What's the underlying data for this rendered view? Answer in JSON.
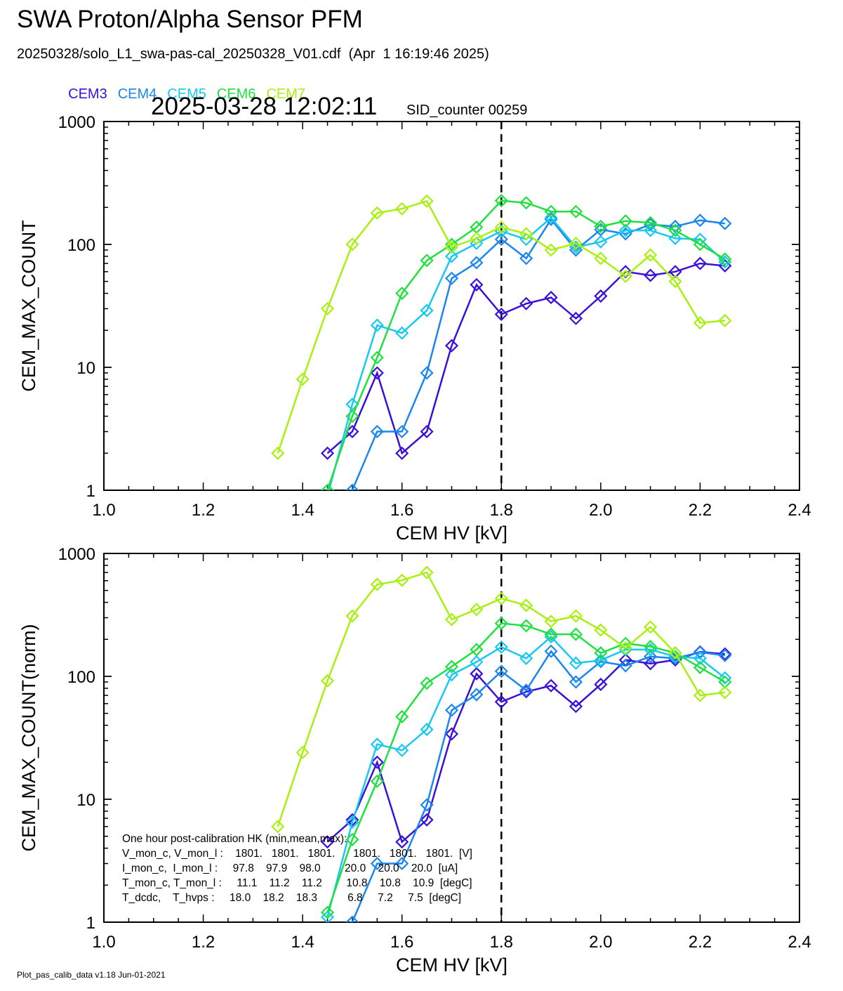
{
  "header": {
    "title": "SWA Proton/Alpha Sensor PFM",
    "subtitle": "20250328/solo_L1_swa-pas-cal_20250328_V01.cdf  (Apr  1 16:19:46 2025)",
    "timestamp": "2025-03-28 12:02:11",
    "sid_counter": "SID_counter 00259"
  },
  "footer": "Plot_pas_calib_data v1.18 Jun-01-2021",
  "legend": [
    {
      "name": "CEM3",
      "color": "#3a10d8"
    },
    {
      "name": "CEM4",
      "color": "#1a86ee"
    },
    {
      "name": "CEM5",
      "color": "#18c8f0"
    },
    {
      "name": "CEM6",
      "color": "#20e040"
    },
    {
      "name": "CEM7",
      "color": "#a8f010"
    }
  ],
  "hk_box": {
    "lines": [
      "One hour post-calibration HK (min,mean,max):",
      "V_mon_c, V_mon_l :    1801.   1801.   1801.      1801.   1801.   1801.  [V]",
      "I_mon_c,  I_mon_l :     97.8    97.9    98.0        20.0    20.0    20.0  [uA]",
      "T_mon_c, T_mon_l :     11.1    11.2    11.2        10.8    10.8    10.9  [degC]",
      "T_dcdc,    T_hvps :     18.0    18.2    18.3          6.8     7.2     7.5  [degC]"
    ]
  },
  "chart_data": [
    {
      "type": "line",
      "xlabel": "CEM HV [kV]",
      "ylabel": "CEM_MAX_COUNT",
      "xlim": [
        1.0,
        2.4
      ],
      "ylim": [
        1,
        1000
      ],
      "yscale": "log",
      "xticks": [
        "1.0",
        "1.2",
        "1.4",
        "1.6",
        "1.8",
        "2.0",
        "2.2",
        "2.4"
      ],
      "yticks": [
        "1",
        "10",
        "100",
        "1000"
      ],
      "vline_x": 1.8,
      "series": [
        {
          "name": "CEM3",
          "color": "#3a10d8",
          "x": [
            1.45,
            1.5,
            1.55,
            1.6,
            1.65,
            1.7,
            1.75,
            1.8,
            1.85,
            1.9,
            1.95,
            2.0,
            2.05,
            2.1,
            2.15,
            2.2,
            2.25
          ],
          "y": [
            2,
            3,
            9,
            2,
            3,
            15,
            47,
            27,
            33,
            37,
            25,
            38,
            60,
            56,
            60,
            70,
            67
          ]
        },
        {
          "name": "CEM4",
          "color": "#1a86ee",
          "x": [
            1.45,
            1.5,
            1.55,
            1.6,
            1.65,
            1.7,
            1.75,
            1.8,
            1.85,
            1.9,
            1.95,
            2.0,
            2.05,
            2.1,
            2.15,
            2.2,
            2.25
          ],
          "y": [
            0.9,
            1,
            3,
            3,
            9,
            53,
            71,
            110,
            77,
            160,
            90,
            132,
            122,
            145,
            140,
            157,
            148
          ]
        },
        {
          "name": "CEM5",
          "color": "#18c8f0",
          "x": [
            1.45,
            1.5,
            1.55,
            1.6,
            1.65,
            1.7,
            1.75,
            1.8,
            1.85,
            1.9,
            1.95,
            2.0,
            2.05,
            2.1,
            2.15,
            2.2,
            2.25
          ],
          "y": [
            0.9,
            5,
            22,
            19,
            29,
            80,
            102,
            128,
            110,
            165,
            95,
            105,
            130,
            130,
            112,
            110,
            72
          ]
        },
        {
          "name": "CEM6",
          "color": "#20e040",
          "x": [
            1.45,
            1.5,
            1.55,
            1.6,
            1.65,
            1.7,
            1.75,
            1.8,
            1.85,
            1.9,
            1.95,
            2.0,
            2.05,
            2.1,
            2.15,
            2.2,
            2.25
          ],
          "y": [
            1,
            4,
            12,
            40,
            74,
            100,
            138,
            227,
            218,
            185,
            185,
            140,
            155,
            150,
            130,
            100,
            76
          ]
        },
        {
          "name": "CEM7",
          "color": "#a8f010",
          "x": [
            1.35,
            1.4,
            1.45,
            1.5,
            1.55,
            1.6,
            1.65,
            1.7,
            1.75,
            1.8,
            1.85,
            1.9,
            1.95,
            2.0,
            2.05,
            2.1,
            2.15,
            2.2,
            2.25
          ],
          "y": [
            2,
            8,
            30,
            100,
            180,
            195,
            225,
            95,
            112,
            138,
            122,
            90,
            102,
            77,
            55,
            82,
            50,
            23,
            24
          ]
        }
      ]
    },
    {
      "type": "line",
      "xlabel": "CEM HV [kV]",
      "ylabel": "CEM_MAX_COUNT(norm)",
      "xlim": [
        1.0,
        2.4
      ],
      "ylim": [
        1,
        1000
      ],
      "yscale": "log",
      "xticks": [
        "1.0",
        "1.2",
        "1.4",
        "1.6",
        "1.8",
        "2.0",
        "2.2",
        "2.4"
      ],
      "yticks": [
        "1",
        "10",
        "100",
        "1000"
      ],
      "vline_x": 1.8,
      "series": [
        {
          "name": "CEM3",
          "color": "#3a10d8",
          "x": [
            1.45,
            1.5,
            1.55,
            1.6,
            1.65,
            1.7,
            1.75,
            1.8,
            1.85,
            1.9,
            1.95,
            2.0,
            2.05,
            2.1,
            2.15,
            2.2,
            2.25
          ],
          "y": [
            4.5,
            6.8,
            20,
            4.5,
            6.8,
            34,
            105,
            62,
            75,
            84,
            57,
            86,
            136,
            127,
            136,
            158,
            152
          ]
        },
        {
          "name": "CEM4",
          "color": "#1a86ee",
          "x": [
            1.45,
            1.5,
            1.55,
            1.6,
            1.65,
            1.7,
            1.75,
            1.8,
            1.85,
            1.9,
            1.95,
            2.0,
            2.05,
            2.1,
            2.15,
            2.2,
            2.25
          ],
          "y": [
            0.9,
            1,
            3,
            3,
            9,
            53,
            71,
            110,
            77,
            160,
            90,
            132,
            122,
            145,
            140,
            157,
            148
          ]
        },
        {
          "name": "CEM5",
          "color": "#18c8f0",
          "x": [
            1.45,
            1.5,
            1.55,
            1.6,
            1.65,
            1.7,
            1.75,
            1.8,
            1.85,
            1.9,
            1.95,
            2.0,
            2.05,
            2.1,
            2.15,
            2.2,
            2.25
          ],
          "y": [
            1.1,
            6.5,
            28,
            25,
            37,
            103,
            131,
            173,
            140,
            210,
            128,
            135,
            165,
            165,
            145,
            140,
            97
          ]
        },
        {
          "name": "CEM6",
          "color": "#20e040",
          "x": [
            1.45,
            1.5,
            1.55,
            1.6,
            1.65,
            1.7,
            1.75,
            1.8,
            1.85,
            1.9,
            1.95,
            2.0,
            2.05,
            2.1,
            2.15,
            2.2,
            2.25
          ],
          "y": [
            1.2,
            4.7,
            14,
            47,
            88,
            120,
            165,
            270,
            258,
            220,
            220,
            155,
            185,
            175,
            155,
            118,
            90
          ]
        },
        {
          "name": "CEM7",
          "color": "#a8f010",
          "x": [
            1.35,
            1.4,
            1.45,
            1.5,
            1.55,
            1.6,
            1.65,
            1.7,
            1.75,
            1.8,
            1.85,
            1.9,
            1.95,
            2.0,
            2.05,
            2.1,
            2.15,
            2.2,
            2.25
          ],
          "y": [
            6,
            24,
            92,
            310,
            560,
            605,
            700,
            290,
            350,
            430,
            378,
            280,
            310,
            238,
            170,
            252,
            155,
            70,
            74
          ]
        }
      ]
    }
  ]
}
